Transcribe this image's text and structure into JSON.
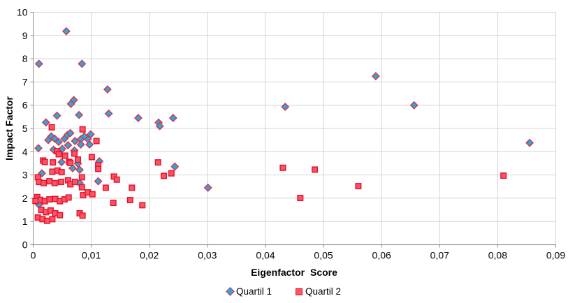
{
  "chart_data": {
    "type": "scatter",
    "title": "",
    "xlabel": "Eigenfactor Score",
    "ylabel": "Impact Factor",
    "xlim": [
      0,
      0.09
    ],
    "ylim": [
      0,
      10
    ],
    "grid": true,
    "legend_position": "bottom",
    "decimal_separator": ",",
    "x_tick_values": [
      0,
      0.01,
      0.02,
      0.03,
      0.04,
      0.05,
      0.06,
      0.07,
      0.08,
      0.09
    ],
    "x_tick_labels": [
      "0",
      "0,01",
      "0,02",
      "0,03",
      "0,04",
      "0,05",
      "0,06",
      "0,07",
      "0,08",
      "0,09"
    ],
    "y_tick_values": [
      0,
      1,
      2,
      3,
      4,
      5,
      6,
      7,
      8,
      9,
      10
    ],
    "y_tick_labels": [
      "0",
      "1",
      "2",
      "3",
      "4",
      "5",
      "6",
      "7",
      "8",
      "9",
      "10"
    ],
    "colors": {
      "background": "#FFFFFF",
      "gridline": "#D4D4D4",
      "axis": "#8C8C8C",
      "text": "#000000"
    },
    "series": [
      {
        "name": "Quartil 1",
        "marker": "diamond",
        "fill": "#2BA6DE",
        "stroke": "#DC3545",
        "points": [
          [
            0.001,
            7.78
          ],
          [
            0.0057,
            9.18
          ],
          [
            0.0084,
            7.78
          ],
          [
            0.0128,
            6.68
          ],
          [
            0.007,
            6.22
          ],
          [
            0.0065,
            6.06
          ],
          [
            0.0041,
            5.55
          ],
          [
            0.0079,
            5.58
          ],
          [
            0.013,
            5.64
          ],
          [
            0.0181,
            5.45
          ],
          [
            0.0216,
            5.25
          ],
          [
            0.0218,
            5.1
          ],
          [
            0.0241,
            5.45
          ],
          [
            0.0434,
            5.93
          ],
          [
            0.059,
            7.25
          ],
          [
            0.0656,
            6.0
          ],
          [
            0.0855,
            4.38
          ],
          [
            0.0022,
            5.26
          ],
          [
            0.0099,
            4.75
          ],
          [
            0.0094,
            4.55
          ],
          [
            0.0031,
            4.66
          ],
          [
            0.0026,
            4.5
          ],
          [
            0.0037,
            4.56
          ],
          [
            0.0044,
            4.42
          ],
          [
            0.0054,
            4.56
          ],
          [
            0.0059,
            4.72
          ],
          [
            0.0064,
            4.8
          ],
          [
            0.0072,
            4.46
          ],
          [
            0.0082,
            4.54
          ],
          [
            0.0088,
            4.66
          ],
          [
            0.0082,
            4.31
          ],
          [
            0.0097,
            4.31
          ],
          [
            0.006,
            4.28
          ],
          [
            0.0071,
            4.05
          ],
          [
            0.0009,
            4.15
          ],
          [
            0.0035,
            4.09
          ],
          [
            0.005,
            4.12
          ],
          [
            0.0049,
            3.55
          ],
          [
            0.0077,
            3.49
          ],
          [
            0.0068,
            3.29
          ],
          [
            0.008,
            3.22
          ],
          [
            0.0015,
            3.07
          ],
          [
            0.008,
            2.65
          ],
          [
            0.0112,
            2.73
          ],
          [
            0.0114,
            3.59
          ],
          [
            0.0244,
            3.36
          ],
          [
            0.0301,
            2.45
          ],
          [
            0.001,
            1.72
          ]
        ]
      },
      {
        "name": "Quartil 2",
        "marker": "square",
        "fill": "#FB5565",
        "stroke": "#E3112D",
        "points": [
          [
            0.0032,
            5.05
          ],
          [
            0.0085,
            4.96
          ],
          [
            0.0109,
            4.46
          ],
          [
            0.0041,
            4.02
          ],
          [
            0.0044,
            3.89
          ],
          [
            0.0055,
            3.83
          ],
          [
            0.0071,
            3.92
          ],
          [
            0.0077,
            3.66
          ],
          [
            0.0017,
            3.62
          ],
          [
            0.002,
            3.56
          ],
          [
            0.0034,
            3.54
          ],
          [
            0.0062,
            3.56
          ],
          [
            0.0064,
            3.52
          ],
          [
            0.0101,
            3.77
          ],
          [
            0.0112,
            3.42
          ],
          [
            0.0112,
            3.26
          ],
          [
            0.0033,
            3.14
          ],
          [
            0.0042,
            3.19
          ],
          [
            0.0049,
            3.12
          ],
          [
            0.0008,
            2.9
          ],
          [
            0.001,
            2.7
          ],
          [
            0.0018,
            2.65
          ],
          [
            0.0028,
            2.73
          ],
          [
            0.0037,
            2.65
          ],
          [
            0.0048,
            2.7
          ],
          [
            0.006,
            2.77
          ],
          [
            0.0064,
            2.6
          ],
          [
            0.0072,
            2.7
          ],
          [
            0.0084,
            2.47
          ],
          [
            0.0084,
            2.9
          ],
          [
            0.0086,
            2.13
          ],
          [
            0.0094,
            2.25
          ],
          [
            0.0102,
            2.17
          ],
          [
            0.0007,
            2.05
          ],
          [
            0.0012,
            1.93
          ],
          [
            0.002,
            1.87
          ],
          [
            0.0028,
            1.95
          ],
          [
            0.0038,
            1.97
          ],
          [
            0.0046,
            1.87
          ],
          [
            0.0054,
            1.95
          ],
          [
            0.0061,
            2.03
          ],
          [
            0.0004,
            1.88
          ],
          [
            0.0014,
            1.5
          ],
          [
            0.0022,
            1.4
          ],
          [
            0.003,
            1.47
          ],
          [
            0.0038,
            1.35
          ],
          [
            0.0046,
            1.27
          ],
          [
            0.0008,
            1.17
          ],
          [
            0.0016,
            1.1
          ],
          [
            0.0024,
            1.03
          ],
          [
            0.0033,
            1.1
          ],
          [
            0.008,
            1.35
          ],
          [
            0.0085,
            1.25
          ],
          [
            0.0125,
            2.45
          ],
          [
            0.0139,
            2.93
          ],
          [
            0.0144,
            2.8
          ],
          [
            0.0138,
            1.8
          ],
          [
            0.0167,
            1.92
          ],
          [
            0.0188,
            1.7
          ],
          [
            0.017,
            2.45
          ],
          [
            0.0215,
            3.54
          ],
          [
            0.0225,
            2.96
          ],
          [
            0.0238,
            3.07
          ],
          [
            0.043,
            3.31
          ],
          [
            0.0485,
            3.23
          ],
          [
            0.046,
            2.01
          ],
          [
            0.056,
            2.52
          ],
          [
            0.081,
            2.97
          ]
        ]
      }
    ]
  }
}
